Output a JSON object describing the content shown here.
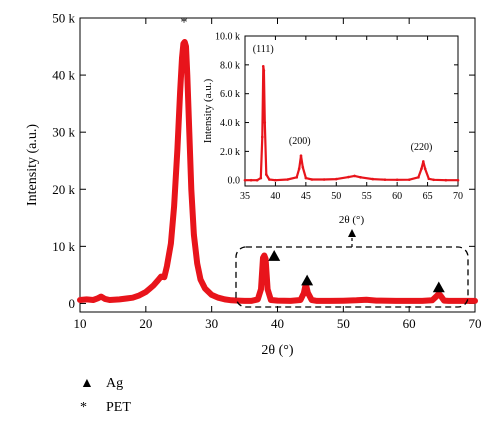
{
  "chart_data": [
    {
      "type": "line",
      "name": "main",
      "xlabel": "2θ (°)",
      "ylabel": "Intensity (a.u.)",
      "xlim": [
        10,
        70
      ],
      "ylim": [
        -1500,
        50000
      ],
      "xticks": [
        "10",
        "20",
        "30",
        "40",
        "50",
        "60",
        "70"
      ],
      "yticks": [
        "0",
        "10 k",
        "20 k",
        "30 k",
        "40 k",
        "50 k"
      ],
      "color": "#e8141b",
      "series": [
        {
          "x": [
            10,
            11,
            12,
            12.7,
            13.2,
            13.8,
            14.5,
            16,
            18,
            19,
            20,
            20.6,
            21.2,
            21.8,
            22.3,
            22.8,
            23.2,
            23.8,
            24.3,
            24.8,
            25.2,
            25.5,
            25.7,
            25.9,
            26.1,
            26.3,
            26.6,
            26.9,
            27.3,
            27.8,
            28.3,
            29,
            30,
            31,
            32,
            33,
            34,
            35,
            36,
            37,
            37.5,
            37.8,
            38.0,
            38.2,
            38.5,
            39,
            40,
            42,
            43.5,
            44.0,
            44.3,
            44.6,
            45.2,
            46,
            48,
            50,
            52,
            53.5,
            55,
            58,
            60,
            62,
            63.5,
            64.2,
            64.5,
            64.8,
            65.3,
            66,
            68,
            70
          ],
          "y": [
            600,
            700,
            600,
            900,
            1200,
            800,
            600,
            700,
            1000,
            1400,
            2000,
            2600,
            3200,
            4000,
            4700,
            4600,
            6500,
            10500,
            17000,
            27000,
            37000,
            43000,
            45500,
            45800,
            45000,
            40000,
            30000,
            20000,
            12000,
            7000,
            4200,
            2600,
            1500,
            1000,
            700,
            550,
            500,
            450,
            450,
            700,
            2500,
            8000,
            8400,
            7800,
            2500,
            600,
            500,
            450,
            600,
            1800,
            3400,
            1900,
            600,
            450,
            450,
            480,
            550,
            650,
            500,
            450,
            450,
            450,
            550,
            1300,
            1700,
            1300,
            500,
            450,
            450,
            450
          ]
        }
      ],
      "annotations": [
        {
          "text": "*",
          "x": 25.8,
          "y": 48500
        },
        {
          "marker": "triangle",
          "x": 39.5,
          "y": 8300
        },
        {
          "marker": "triangle",
          "x": 44.5,
          "y": 4000
        },
        {
          "marker": "triangle",
          "x": 64.5,
          "y": 2800
        }
      ]
    },
    {
      "type": "line",
      "name": "inset",
      "xlabel": "2θ (°)",
      "ylabel": "Intensity (a.u.)",
      "xlim": [
        35,
        70
      ],
      "ylim": [
        -400,
        10000
      ],
      "xticks": [
        "35",
        "40",
        "45",
        "50",
        "55",
        "60",
        "65",
        "70"
      ],
      "yticks": [
        "0.0",
        "2.0 k",
        "4.0 k",
        "6.0 k",
        "8.0 k",
        "10.0 k"
      ],
      "color": "#e8141b",
      "series": [
        {
          "x": [
            35,
            36,
            37,
            37.6,
            37.85,
            38.0,
            38.1,
            38.25,
            38.5,
            39,
            40,
            42,
            43.5,
            43.9,
            44.2,
            44.5,
            45,
            46,
            48,
            50,
            52,
            53,
            54,
            56,
            58,
            60,
            62,
            63.5,
            64.0,
            64.3,
            64.6,
            65.2,
            66,
            68,
            70
          ],
          "y": [
            0,
            0,
            0,
            150,
            3000,
            7900,
            7600,
            4000,
            400,
            50,
            0,
            50,
            200,
            800,
            1700,
            900,
            150,
            50,
            50,
            80,
            220,
            300,
            200,
            80,
            40,
            30,
            40,
            200,
            800,
            1300,
            800,
            100,
            30,
            0,
            0
          ]
        }
      ],
      "annotations": [
        {
          "text": "(111)",
          "x": 38,
          "y": 8900
        },
        {
          "text": "(200)",
          "x": 44,
          "y": 2500
        },
        {
          "text": "(220)",
          "x": 64,
          "y": 2100
        }
      ]
    }
  ],
  "legend": [
    {
      "symbol": "▲",
      "label": "Ag"
    },
    {
      "symbol": "*",
      "label": "PET"
    }
  ]
}
